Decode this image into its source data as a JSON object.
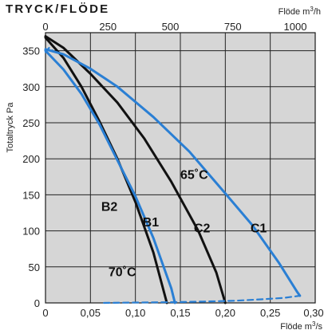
{
  "page_title": "TRYCK/FLÖDE",
  "chart_data": {
    "type": "line",
    "title": "TRYCK/FLÖDE",
    "ylabel": "Totaltryck Pa",
    "xlabel_bottom": {
      "text": "Flöde m",
      "sup": "3",
      "suffix": "/s"
    },
    "xlabel_top": {
      "text": "Flöde m",
      "sup": "3",
      "suffix": "/h"
    },
    "xlim": [
      0,
      0.3
    ],
    "ylim": [
      0,
      375
    ],
    "grid": true,
    "x_ticks": [
      {
        "v": 0,
        "label": "0"
      },
      {
        "v": 0.05,
        "label": "0,05"
      },
      {
        "v": 0.1,
        "label": "0,10"
      },
      {
        "v": 0.15,
        "label": "0,15"
      },
      {
        "v": 0.2,
        "label": "0,20"
      },
      {
        "v": 0.25,
        "label": "0,25"
      },
      {
        "v": 0.3,
        "label": "0,30"
      }
    ],
    "x_top_ticks": [
      {
        "v": 0,
        "label": "0"
      },
      {
        "v": 250,
        "label": "250"
      },
      {
        "v": 500,
        "label": "500"
      },
      {
        "v": 750,
        "label": "750"
      },
      {
        "v": 1000,
        "label": "1000"
      }
    ],
    "y_ticks": [
      {
        "v": 0,
        "label": "0"
      },
      {
        "v": 50,
        "label": "50"
      },
      {
        "v": 100,
        "label": "100"
      },
      {
        "v": 150,
        "label": "150"
      },
      {
        "v": 200,
        "label": "200"
      },
      {
        "v": 250,
        "label": "250"
      },
      {
        "v": 300,
        "label": "300"
      },
      {
        "v": 350,
        "label": "350"
      }
    ],
    "series": [
      {
        "name": "B2",
        "color": "#111111",
        "dashed": false,
        "points": [
          [
            0,
            368
          ],
          [
            0.02,
            340
          ],
          [
            0.04,
            300
          ],
          [
            0.06,
            252
          ],
          [
            0.08,
            200
          ],
          [
            0.1,
            140
          ],
          [
            0.12,
            70
          ],
          [
            0.135,
            0
          ]
        ]
      },
      {
        "name": "C2",
        "color": "#111111",
        "dashed": false,
        "points": [
          [
            0,
            370
          ],
          [
            0.02,
            354
          ],
          [
            0.05,
            318
          ],
          [
            0.08,
            278
          ],
          [
            0.11,
            228
          ],
          [
            0.14,
            168
          ],
          [
            0.17,
            100
          ],
          [
            0.19,
            42
          ],
          [
            0.2,
            0
          ]
        ]
      },
      {
        "name": "B1",
        "color": "#2a7fd4",
        "dashed": false,
        "points": [
          [
            0,
            350
          ],
          [
            0.02,
            324
          ],
          [
            0.04,
            290
          ],
          [
            0.06,
            248
          ],
          [
            0.08,
            198
          ],
          [
            0.1,
            148
          ],
          [
            0.12,
            90
          ],
          [
            0.14,
            20
          ],
          [
            0.144,
            0
          ]
        ]
      },
      {
        "name": "C1",
        "color": "#2a7fd4",
        "dashed": false,
        "points": [
          [
            0,
            352
          ],
          [
            0.02,
            345
          ],
          [
            0.05,
            325
          ],
          [
            0.08,
            300
          ],
          [
            0.12,
            258
          ],
          [
            0.16,
            210
          ],
          [
            0.2,
            152
          ],
          [
            0.23,
            108
          ],
          [
            0.26,
            55
          ],
          [
            0.28,
            15
          ],
          [
            0.283,
            10
          ]
        ]
      },
      {
        "name": "",
        "color": "#2a7fd4",
        "dashed": true,
        "points": [
          [
            0.065,
            0
          ],
          [
            0.1,
            0.5
          ],
          [
            0.14,
            1
          ],
          [
            0.18,
            2
          ],
          [
            0.21,
            3
          ],
          [
            0.24,
            5
          ],
          [
            0.265,
            7
          ],
          [
            0.283,
            10
          ]
        ]
      },
      {
        "name": "",
        "color": "#2a7fd4",
        "dashed": true,
        "points": [
          [
            0,
            348
          ],
          [
            0.004,
            354
          ],
          [
            0.008,
            350
          ]
        ]
      }
    ],
    "annotations": [
      {
        "text": "B2",
        "x": 0.062,
        "y": 128
      },
      {
        "text": "B1",
        "x": 0.108,
        "y": 106
      },
      {
        "text": "C2",
        "x": 0.165,
        "y": 98
      },
      {
        "text": "C1",
        "x": 0.228,
        "y": 98
      },
      {
        "text": "65˚C",
        "x": 0.15,
        "y": 172
      },
      {
        "text": "70˚C",
        "x": 0.07,
        "y": 37
      }
    ]
  }
}
